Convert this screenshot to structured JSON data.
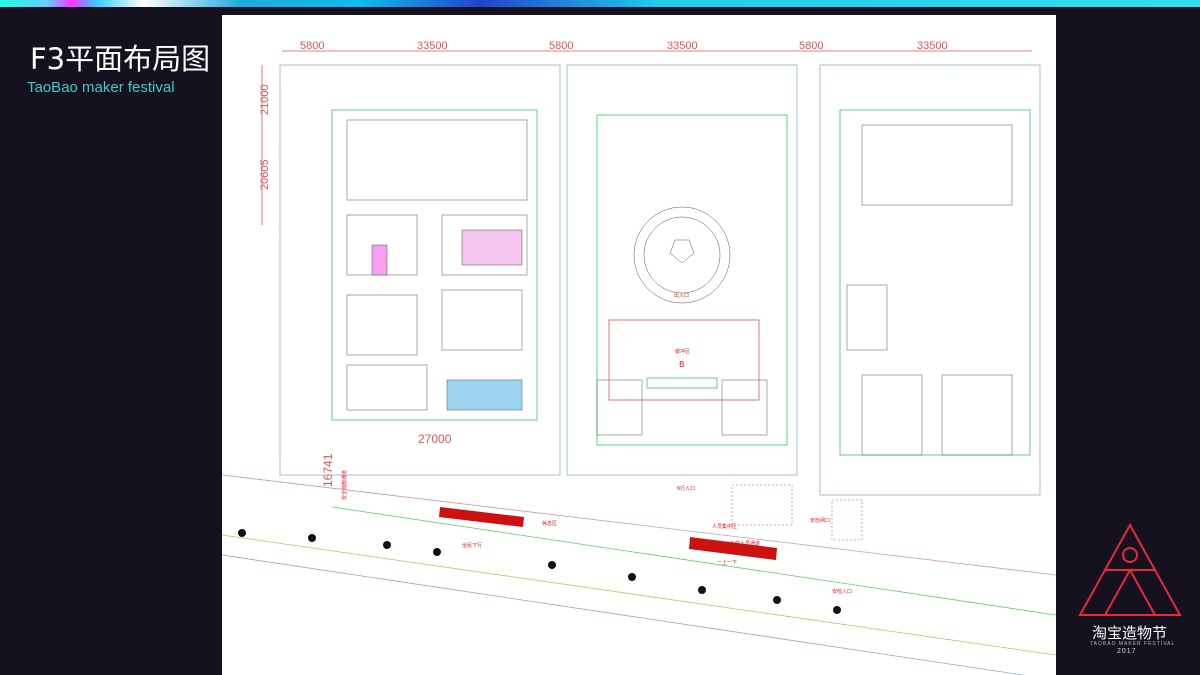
{
  "slide": {
    "title": "F3平面布局图",
    "subtitle": "TaoBao maker festival"
  },
  "plan": {
    "dimensions_top": [
      "5800",
      "33500",
      "5800",
      "33500",
      "5800",
      "33500"
    ],
    "dimensions_left": [
      "21000",
      "20605"
    ],
    "dimension_bottom": "27000",
    "dimension_side": "16741",
    "labels": {
      "entrance": "出入口",
      "buffer": "缓冲区",
      "zone": "B",
      "down_escalator": "全民下行",
      "rest": "休息区",
      "up_down": "一上一下",
      "staff_passage": "工作人员通道",
      "crowd_area": "人员集中区",
      "security_gate": "安检闸口",
      "security_entrance": "安检入口",
      "evacuation": "安全疏散通道",
      "entry": "6行入口"
    },
    "colors": {
      "dimension": "#e05555",
      "escalator": "#cc1111",
      "wall": "#9ab",
      "guide": "#33cc66"
    }
  },
  "logo": {
    "cn": "淘宝造物节",
    "en": "TAOBAO MAKER FESTIVAL",
    "year": "2017",
    "accent": "#e8283c"
  }
}
